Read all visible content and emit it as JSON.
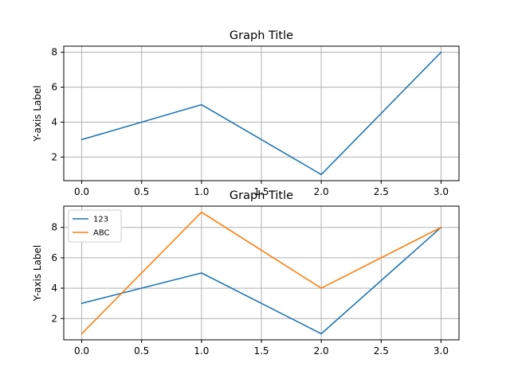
{
  "chart_data": [
    {
      "type": "line",
      "title": "Graph Title",
      "xlabel": "",
      "ylabel": "Y-axis Label",
      "x": [
        0,
        1,
        2,
        3
      ],
      "series": [
        {
          "values": [
            3,
            5,
            1,
            8
          ],
          "color": "#1f77b4"
        }
      ],
      "xlim": [
        -0.15,
        3.15
      ],
      "ylim": [
        0.65,
        8.35
      ],
      "xticks": [
        0.0,
        0.5,
        1.0,
        1.5,
        2.0,
        2.5,
        3.0
      ],
      "xtick_labels": [
        "0.0",
        "0.5",
        "1.0",
        "1.5",
        "2.0",
        "2.5",
        "3.0"
      ],
      "yticks": [
        2,
        4,
        6,
        8
      ],
      "ytick_labels": [
        "2",
        "4",
        "6",
        "8"
      ],
      "grid": true,
      "legend": null
    },
    {
      "type": "line",
      "title": "Graph Title",
      "xlabel": "",
      "ylabel": "Y-axis Label",
      "x": [
        0,
        1,
        2,
        3
      ],
      "series": [
        {
          "name": "123",
          "values": [
            3,
            5,
            1,
            8
          ],
          "color": "#1f77b4"
        },
        {
          "name": "ABC",
          "values": [
            1,
            9,
            4,
            8
          ],
          "color": "#ff7f0e"
        }
      ],
      "xlim": [
        -0.15,
        3.15
      ],
      "ylim": [
        0.6,
        9.4
      ],
      "xticks": [
        0.0,
        0.5,
        1.0,
        1.5,
        2.0,
        2.5,
        3.0
      ],
      "xtick_labels": [
        "0.0",
        "0.5",
        "1.0",
        "1.5",
        "2.0",
        "2.5",
        "3.0"
      ],
      "yticks": [
        2,
        4,
        6,
        8
      ],
      "ytick_labels": [
        "2",
        "4",
        "6",
        "8"
      ],
      "grid": true,
      "legend": "top-left"
    }
  ]
}
